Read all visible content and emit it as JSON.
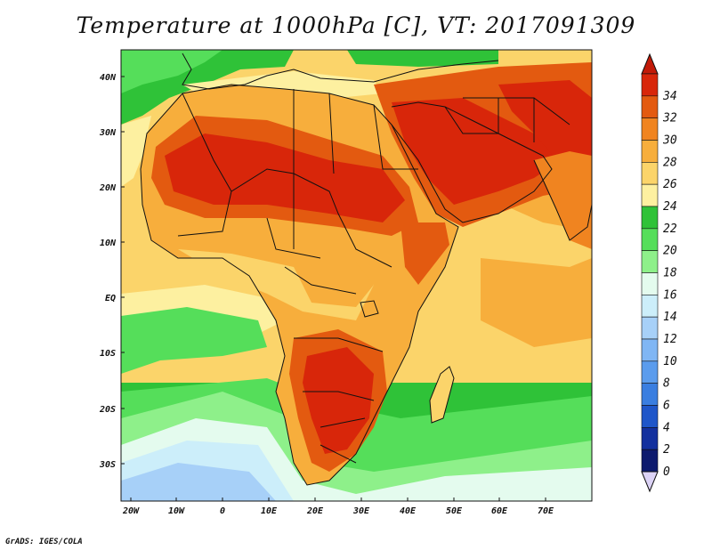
{
  "title": "Temperature at 1000hPa [C], VT: 2017091309",
  "footer": "GrADS: IGES/COLA",
  "map": {
    "lon_range": [
      -22,
      80
    ],
    "lat_range": [
      -36,
      45
    ],
    "lon_ticks": [
      "20W",
      "10W",
      "0",
      "10E",
      "20E",
      "30E",
      "40E",
      "50E",
      "60E",
      "70E"
    ],
    "lat_ticks": [
      "40N",
      "30N",
      "20N",
      "10N",
      "EQ",
      "10S",
      "20S",
      "30S"
    ],
    "units": "C"
  },
  "colorbar": {
    "labels": [
      "0",
      "2",
      "4",
      "6",
      "8",
      "10",
      "12",
      "14",
      "16",
      "18",
      "20",
      "22",
      "24",
      "26",
      "28",
      "30",
      "32",
      "34"
    ],
    "colors": [
      "#0d1a6e",
      "#13309e",
      "#1f56c9",
      "#3a7ee0",
      "#5b9ced",
      "#80b6f4",
      "#a7d0f8",
      "#cceefa",
      "#e4fbee",
      "#8ef08a",
      "#55de5a",
      "#2fc238",
      "#fdf0a0",
      "#fbd46a",
      "#f7ae3c",
      "#f08420",
      "#e35a10",
      "#d8260a",
      "#c21a08"
    ],
    "under_color": "#dcd3f6",
    "over_color": "#c21a08"
  }
}
